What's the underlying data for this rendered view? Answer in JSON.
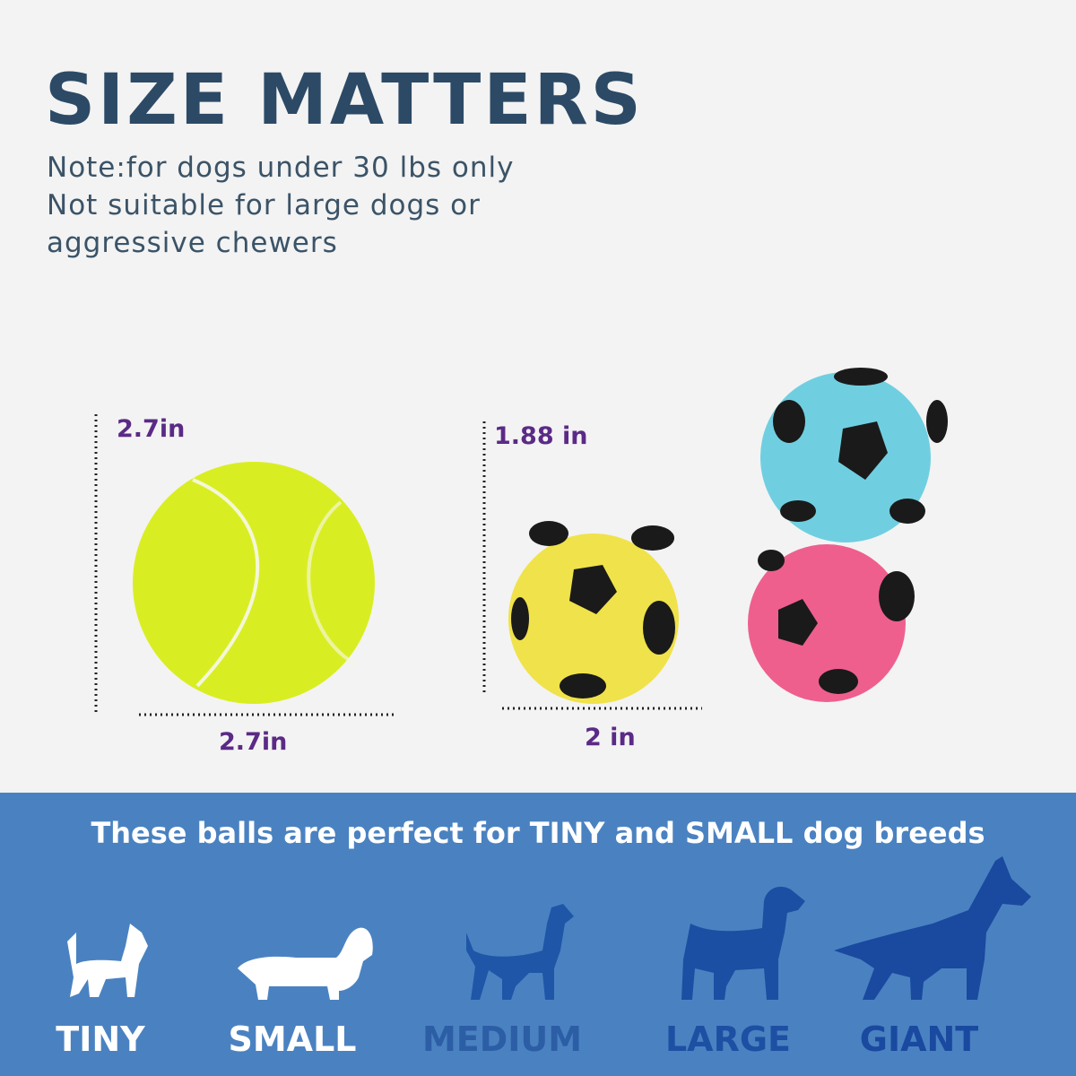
{
  "header": {
    "title": "SIZE MATTERS",
    "notes": [
      "Note:for dogs under 30 lbs only",
      "Not suitable for large dogs or",
      "aggressive chewers"
    ]
  },
  "dimensions": {
    "tennis_height": "2.7in",
    "tennis_width": "2.7in",
    "soccer_height": "1.88 in",
    "soccer_width": "2 in"
  },
  "banner": {
    "text": "These balls are perfect for TINY and SMALL dog breeds",
    "sizes": [
      "TINY",
      "SMALL",
      "MEDIUM",
      "LARGE",
      "GIANT"
    ]
  }
}
